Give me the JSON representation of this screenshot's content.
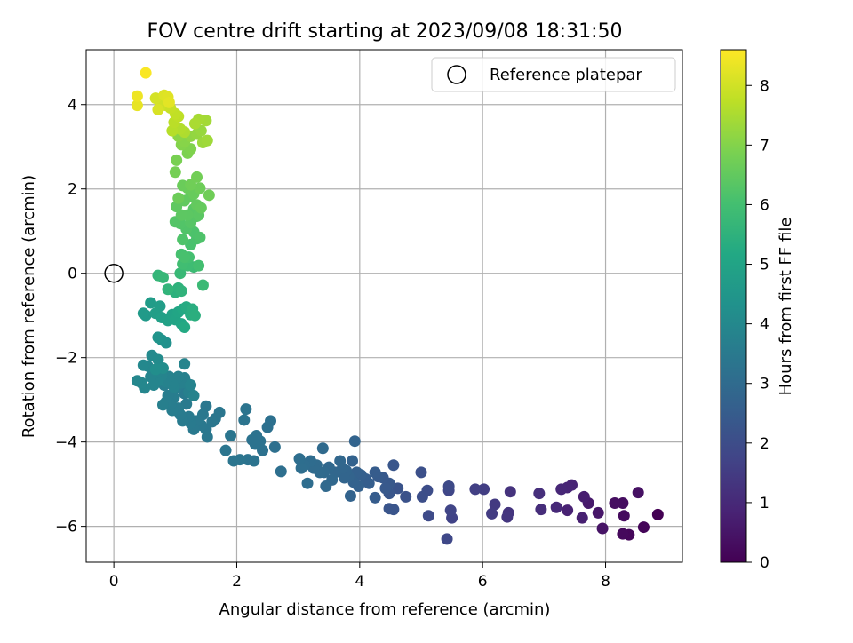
{
  "chart_data": {
    "type": "scatter",
    "title": "FOV centre drift starting at 2023/09/08 18:31:50",
    "xlabel": "Angular distance from reference (arcmin)",
    "ylabel": "Rotation from reference (arcmin)",
    "xlim": [
      -0.45,
      9.25
    ],
    "ylim": [
      -6.85,
      5.3
    ],
    "xticks": [
      0,
      2,
      4,
      6,
      8
    ],
    "yticks": [
      -6,
      -4,
      -2,
      0,
      2,
      4
    ],
    "grid": true,
    "legend": {
      "position": "top-right",
      "entries": [
        {
          "label": "Reference platepar",
          "marker": "open-circle"
        }
      ]
    },
    "reference_point": {
      "x": 0,
      "y": 0
    },
    "colorbar": {
      "label": "Hours from first FF file",
      "colormap": "viridis",
      "range": [
        0,
        8.6
      ],
      "ticks": [
        0,
        1,
        2,
        3,
        4,
        5,
        6,
        7,
        8
      ]
    },
    "series": [
      {
        "points": [
          [
            8.85,
            -5.72,
            0.0
          ],
          [
            8.62,
            -6.02,
            0.1
          ],
          [
            8.38,
            -6.2,
            0.15
          ],
          [
            8.28,
            -6.18,
            0.2
          ],
          [
            8.3,
            -5.75,
            0.25
          ],
          [
            8.28,
            -5.45,
            0.3
          ],
          [
            8.15,
            -5.45,
            0.35
          ],
          [
            8.53,
            -5.2,
            0.4
          ],
          [
            7.95,
            -6.05,
            0.45
          ],
          [
            7.88,
            -5.68,
            0.55
          ],
          [
            7.72,
            -5.45,
            0.6
          ],
          [
            7.65,
            -5.3,
            0.7
          ],
          [
            7.62,
            -5.8,
            0.75
          ],
          [
            7.38,
            -5.62,
            0.8
          ],
          [
            7.45,
            -5.02,
            0.85
          ],
          [
            7.38,
            -5.08,
            0.9
          ],
          [
            7.28,
            -5.12,
            0.95
          ],
          [
            7.2,
            -5.55,
            1.0
          ],
          [
            6.95,
            -5.6,
            1.1
          ],
          [
            6.92,
            -5.22,
            1.15
          ],
          [
            6.45,
            -5.18,
            1.25
          ],
          [
            6.42,
            -5.68,
            1.3
          ],
          [
            6.4,
            -5.78,
            1.35
          ],
          [
            6.2,
            -5.48,
            1.45
          ],
          [
            6.15,
            -5.7,
            1.5
          ],
          [
            6.02,
            -5.12,
            1.55
          ],
          [
            5.88,
            -5.12,
            1.6
          ],
          [
            5.5,
            -5.8,
            1.7
          ],
          [
            5.48,
            -5.62,
            1.75
          ],
          [
            5.45,
            -5.15,
            1.8
          ],
          [
            5.42,
            -6.3,
            1.85
          ],
          [
            5.45,
            -5.05,
            1.9
          ],
          [
            5.12,
            -5.75,
            1.95
          ],
          [
            5.1,
            -5.15,
            2.0
          ],
          [
            5.02,
            -5.3,
            2.05
          ],
          [
            5.0,
            -4.72,
            2.1
          ],
          [
            4.75,
            -5.3,
            2.15
          ],
          [
            4.62,
            -5.1,
            2.2
          ],
          [
            4.55,
            -5.6,
            2.25
          ],
          [
            4.48,
            -5.58,
            2.25
          ],
          [
            4.48,
            -5.22,
            2.3
          ],
          [
            4.55,
            -4.55,
            2.3
          ],
          [
            4.48,
            -4.98,
            2.35
          ],
          [
            4.42,
            -5.1,
            2.4
          ],
          [
            4.38,
            -4.85,
            2.4
          ],
          [
            4.3,
            -4.82,
            2.45
          ],
          [
            4.25,
            -4.72,
            2.5
          ],
          [
            4.25,
            -5.32,
            2.5
          ],
          [
            4.15,
            -4.98,
            2.55
          ],
          [
            4.1,
            -4.88,
            2.55
          ],
          [
            4.02,
            -4.78,
            2.6
          ],
          [
            3.95,
            -4.72,
            2.65
          ],
          [
            3.98,
            -5.05,
            2.65
          ],
          [
            3.9,
            -4.95,
            2.7
          ],
          [
            3.88,
            -4.45,
            2.7
          ],
          [
            3.85,
            -5.28,
            2.72
          ],
          [
            3.82,
            -4.82,
            2.75
          ],
          [
            3.92,
            -3.98,
            2.75
          ],
          [
            3.78,
            -4.68,
            2.78
          ],
          [
            3.75,
            -4.85,
            2.8
          ],
          [
            3.72,
            -4.62,
            2.82
          ],
          [
            3.68,
            -4.45,
            2.85
          ],
          [
            3.6,
            -4.72,
            2.85
          ],
          [
            3.55,
            -4.9,
            2.88
          ],
          [
            3.5,
            -4.6,
            2.9
          ],
          [
            3.45,
            -5.05,
            2.92
          ],
          [
            3.42,
            -4.72,
            2.95
          ],
          [
            3.4,
            -4.15,
            2.95
          ],
          [
            3.35,
            -4.72,
            2.98
          ],
          [
            3.3,
            -4.55,
            3.0
          ],
          [
            3.25,
            -4.62,
            3.0
          ],
          [
            3.2,
            -4.45,
            3.02
          ],
          [
            3.15,
            -4.98,
            3.05
          ],
          [
            3.1,
            -4.55,
            3.05
          ],
          [
            3.05,
            -4.62,
            3.08
          ],
          [
            3.02,
            -4.4,
            3.1
          ],
          [
            2.72,
            -4.7,
            3.12
          ],
          [
            2.62,
            -4.12,
            3.15
          ],
          [
            2.55,
            -3.5,
            3.18
          ],
          [
            2.5,
            -3.65,
            3.18
          ],
          [
            2.42,
            -4.2,
            3.2
          ],
          [
            2.38,
            -3.98,
            3.22
          ],
          [
            2.32,
            -3.85,
            3.22
          ],
          [
            2.3,
            -4.05,
            3.25
          ],
          [
            2.25,
            -3.95,
            3.25
          ],
          [
            2.28,
            -4.45,
            3.28
          ],
          [
            2.18,
            -4.42,
            3.28
          ],
          [
            2.15,
            -3.22,
            3.3
          ],
          [
            2.12,
            -3.48,
            3.3
          ],
          [
            2.05,
            -4.42,
            3.32
          ],
          [
            1.95,
            -4.45,
            3.32
          ],
          [
            1.9,
            -3.85,
            3.35
          ],
          [
            1.82,
            -4.2,
            3.35
          ],
          [
            1.72,
            -3.3,
            3.38
          ],
          [
            1.65,
            -3.45,
            3.38
          ],
          [
            1.6,
            -3.52,
            3.4
          ],
          [
            1.52,
            -3.88,
            3.4
          ],
          [
            1.5,
            -3.7,
            3.42
          ],
          [
            1.5,
            -3.15,
            3.42
          ],
          [
            1.45,
            -3.35,
            3.45
          ],
          [
            1.42,
            -3.6,
            3.45
          ],
          [
            1.35,
            -3.5,
            3.48
          ],
          [
            1.3,
            -3.7,
            3.48
          ],
          [
            1.25,
            -3.55,
            3.5
          ],
          [
            1.22,
            -3.4,
            3.5
          ],
          [
            1.18,
            -3.1,
            3.52
          ],
          [
            1.15,
            -2.85,
            3.52
          ],
          [
            1.12,
            -3.5,
            3.55
          ],
          [
            1.08,
            -3.35,
            3.55
          ],
          [
            1.05,
            -3.2,
            3.58
          ],
          [
            1.02,
            -2.72,
            3.58
          ],
          [
            0.98,
            -2.95,
            3.6
          ],
          [
            0.95,
            -3.25,
            3.6
          ],
          [
            0.92,
            -3.1,
            3.62
          ],
          [
            0.88,
            -2.9,
            3.62
          ],
          [
            0.85,
            -3.05,
            3.65
          ],
          [
            0.82,
            -2.65,
            3.65
          ],
          [
            0.8,
            -3.12,
            3.68
          ],
          [
            1.2,
            -2.62,
            3.7
          ],
          [
            1.22,
            -2.82,
            3.7
          ],
          [
            1.15,
            -2.48,
            3.72
          ],
          [
            1.1,
            -2.6,
            3.72
          ],
          [
            1.05,
            -2.45,
            3.75
          ],
          [
            1.0,
            -2.52,
            3.75
          ],
          [
            0.98,
            -2.7,
            3.78
          ],
          [
            0.95,
            -2.62,
            3.78
          ],
          [
            0.9,
            -2.45,
            3.8
          ],
          [
            0.85,
            -2.58,
            3.8
          ],
          [
            1.25,
            -2.65,
            3.82
          ],
          [
            1.3,
            -2.9,
            3.82
          ],
          [
            1.15,
            -2.15,
            3.85
          ],
          [
            0.78,
            -2.42,
            3.85
          ],
          [
            0.72,
            -2.55,
            3.88
          ],
          [
            0.7,
            -2.35,
            3.88
          ],
          [
            0.65,
            -2.65,
            3.9
          ],
          [
            0.6,
            -2.45,
            3.9
          ],
          [
            0.55,
            -2.2,
            3.92
          ],
          [
            0.5,
            -2.72,
            3.92
          ],
          [
            0.45,
            -2.6,
            3.95
          ],
          [
            0.38,
            -2.55,
            3.95
          ],
          [
            0.48,
            -2.18,
            4.0
          ],
          [
            0.62,
            -1.95,
            4.05
          ],
          [
            0.72,
            -2.05,
            4.1
          ],
          [
            0.8,
            -2.25,
            4.15
          ],
          [
            0.68,
            -2.28,
            4.2
          ],
          [
            0.85,
            -1.65,
            4.3
          ],
          [
            0.78,
            -1.58,
            4.35
          ],
          [
            0.72,
            -1.52,
            4.4
          ],
          [
            0.52,
            -1.0,
            4.6
          ],
          [
            0.48,
            -0.95,
            4.65
          ],
          [
            0.6,
            -0.7,
            4.7
          ],
          [
            0.75,
            -0.78,
            4.75
          ],
          [
            0.68,
            -0.95,
            4.8
          ],
          [
            0.78,
            -1.05,
            4.85
          ],
          [
            0.88,
            -1.12,
            4.9
          ],
          [
            0.95,
            -0.98,
            4.95
          ],
          [
            1.0,
            -1.1,
            5.0
          ],
          [
            1.05,
            -0.92,
            5.05
          ],
          [
            1.1,
            -1.2,
            5.1
          ],
          [
            1.12,
            -0.85,
            5.15
          ],
          [
            1.15,
            -1.28,
            5.2
          ],
          [
            1.18,
            -0.8,
            5.25
          ],
          [
            1.25,
            -0.98,
            5.3
          ],
          [
            1.28,
            -0.85,
            5.35
          ],
          [
            1.32,
            -1.0,
            5.4
          ],
          [
            1.0,
            -0.45,
            5.45
          ],
          [
            1.05,
            -0.35,
            5.5
          ],
          [
            1.1,
            -0.42,
            5.55
          ],
          [
            0.88,
            -0.38,
            5.6
          ],
          [
            0.72,
            -0.05,
            5.65
          ],
          [
            0.8,
            -0.1,
            5.7
          ],
          [
            1.08,
            0.0,
            5.75
          ],
          [
            1.45,
            -0.28,
            5.8
          ],
          [
            1.3,
            0.15,
            5.85
          ],
          [
            1.2,
            0.18,
            5.9
          ],
          [
            1.12,
            0.22,
            5.95
          ],
          [
            1.38,
            0.18,
            6.0
          ],
          [
            1.22,
            0.38,
            6.02
          ],
          [
            1.1,
            0.45,
            6.05
          ],
          [
            1.15,
            0.38,
            6.08
          ],
          [
            1.25,
            0.68,
            6.1
          ],
          [
            1.35,
            0.82,
            6.12
          ],
          [
            1.3,
            0.98,
            6.15
          ],
          [
            1.4,
            0.85,
            6.18
          ],
          [
            1.12,
            0.8,
            6.2
          ],
          [
            1.18,
            1.05,
            6.22
          ],
          [
            1.08,
            1.18,
            6.25
          ],
          [
            1.0,
            1.22,
            6.28
          ],
          [
            1.25,
            1.2,
            6.3
          ],
          [
            1.35,
            1.35,
            6.32
          ],
          [
            1.3,
            1.52,
            6.35
          ],
          [
            1.38,
            1.38,
            6.38
          ],
          [
            1.2,
            1.38,
            6.4
          ],
          [
            1.1,
            1.38,
            6.42
          ],
          [
            1.02,
            1.58,
            6.45
          ],
          [
            1.15,
            1.72,
            6.48
          ],
          [
            1.25,
            1.82,
            6.5
          ],
          [
            1.35,
            1.62,
            6.52
          ],
          [
            1.42,
            1.55,
            6.55
          ],
          [
            1.3,
            1.88,
            6.58
          ],
          [
            1.2,
            2.02,
            6.6
          ],
          [
            1.12,
            2.08,
            6.62
          ],
          [
            1.05,
            1.78,
            6.65
          ],
          [
            1.4,
            2.02,
            6.68
          ],
          [
            1.55,
            1.85,
            6.7
          ],
          [
            1.25,
            2.1,
            6.72
          ],
          [
            1.35,
            2.28,
            6.75
          ],
          [
            1.0,
            2.4,
            6.8
          ],
          [
            1.02,
            2.68,
            6.85
          ],
          [
            1.2,
            2.85,
            6.9
          ],
          [
            1.25,
            2.95,
            6.95
          ],
          [
            1.1,
            3.05,
            7.0
          ],
          [
            1.15,
            3.12,
            7.05
          ],
          [
            1.05,
            3.25,
            7.1
          ],
          [
            1.25,
            3.25,
            7.15
          ],
          [
            1.35,
            3.3,
            7.2
          ],
          [
            1.42,
            3.38,
            7.25
          ],
          [
            1.45,
            3.1,
            7.3
          ],
          [
            1.52,
            3.15,
            7.35
          ],
          [
            1.5,
            3.62,
            7.4
          ],
          [
            1.38,
            3.65,
            7.45
          ],
          [
            1.32,
            3.55,
            7.5
          ],
          [
            1.15,
            3.35,
            7.55
          ],
          [
            1.08,
            3.42,
            7.6
          ],
          [
            0.95,
            3.38,
            7.65
          ],
          [
            0.98,
            3.58,
            7.7
          ],
          [
            1.05,
            3.72,
            7.75
          ],
          [
            1.0,
            3.78,
            7.8
          ],
          [
            0.92,
            3.92,
            7.85
          ],
          [
            0.85,
            3.98,
            7.9
          ],
          [
            0.75,
            3.95,
            7.95
          ],
          [
            0.78,
            4.12,
            8.0
          ],
          [
            0.68,
            4.15,
            8.05
          ],
          [
            0.72,
            3.88,
            8.1
          ],
          [
            0.82,
            4.22,
            8.15
          ],
          [
            0.88,
            4.18,
            8.2
          ],
          [
            0.9,
            4.05,
            8.25
          ],
          [
            0.38,
            3.98,
            8.3
          ],
          [
            0.38,
            4.2,
            8.4
          ],
          [
            0.52,
            4.75,
            8.55
          ]
        ]
      }
    ]
  }
}
